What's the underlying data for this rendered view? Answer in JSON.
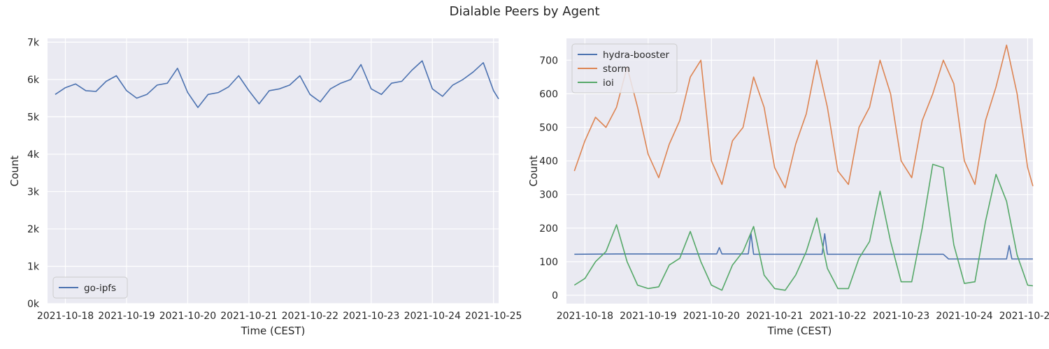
{
  "figure": {
    "title": "Dialable Peers by Agent"
  },
  "colors": {
    "plot_bg": "#eaeaf2",
    "grid": "#ffffff",
    "blue": "#4c72b0",
    "orange": "#dd8452",
    "green": "#55a868"
  },
  "chart_data": [
    {
      "type": "line",
      "title": "",
      "xlabel": "Time (CEST)",
      "ylabel": "Count",
      "x_ticks": [
        "2021-10-18",
        "2021-10-19",
        "2021-10-20",
        "2021-10-21",
        "2021-10-22",
        "2021-10-23",
        "2021-10-24",
        "2021-10-25"
      ],
      "y_ticks": [
        "0k",
        "1k",
        "2k",
        "3k",
        "4k",
        "5k",
        "6k",
        "7k"
      ],
      "xlim": [
        "2021-10-17 17:00",
        "2021-10-25 02:00"
      ],
      "ylim": [
        0,
        7100
      ],
      "grid": true,
      "legend_position": "lower-left",
      "series": [
        {
          "name": "go-ipfs",
          "color": "#4c72b0",
          "points": [
            [
              "2021-10-17 20:00",
              5600
            ],
            [
              "2021-10-18 00:00",
              5780
            ],
            [
              "2021-10-18 04:00",
              5880
            ],
            [
              "2021-10-18 08:00",
              5700
            ],
            [
              "2021-10-18 12:00",
              5680
            ],
            [
              "2021-10-18 16:00",
              5950
            ],
            [
              "2021-10-18 20:00",
              6100
            ],
            [
              "2021-10-19 00:00",
              5700
            ],
            [
              "2021-10-19 04:00",
              5500
            ],
            [
              "2021-10-19 08:00",
              5600
            ],
            [
              "2021-10-19 12:00",
              5850
            ],
            [
              "2021-10-19 16:00",
              5900
            ],
            [
              "2021-10-19 20:00",
              6300
            ],
            [
              "2021-10-20 00:00",
              5650
            ],
            [
              "2021-10-20 04:00",
              5250
            ],
            [
              "2021-10-20 08:00",
              5600
            ],
            [
              "2021-10-20 12:00",
              5650
            ],
            [
              "2021-10-20 16:00",
              5800
            ],
            [
              "2021-10-20 20:00",
              6100
            ],
            [
              "2021-10-21 00:00",
              5700
            ],
            [
              "2021-10-21 04:00",
              5350
            ],
            [
              "2021-10-21 08:00",
              5700
            ],
            [
              "2021-10-21 12:00",
              5750
            ],
            [
              "2021-10-21 16:00",
              5850
            ],
            [
              "2021-10-21 20:00",
              6100
            ],
            [
              "2021-10-22 00:00",
              5600
            ],
            [
              "2021-10-22 04:00",
              5400
            ],
            [
              "2021-10-22 08:00",
              5750
            ],
            [
              "2021-10-22 12:00",
              5900
            ],
            [
              "2021-10-22 16:00",
              6000
            ],
            [
              "2021-10-22 20:00",
              6400
            ],
            [
              "2021-10-23 00:00",
              5750
            ],
            [
              "2021-10-23 04:00",
              5600
            ],
            [
              "2021-10-23 08:00",
              5900
            ],
            [
              "2021-10-23 12:00",
              5950
            ],
            [
              "2021-10-23 16:00",
              6250
            ],
            [
              "2021-10-23 20:00",
              6500
            ],
            [
              "2021-10-24 00:00",
              5750
            ],
            [
              "2021-10-24 04:00",
              5550
            ],
            [
              "2021-10-24 08:00",
              5850
            ],
            [
              "2021-10-24 12:00",
              6000
            ],
            [
              "2021-10-24 16:00",
              6200
            ],
            [
              "2021-10-24 20:00",
              6450
            ],
            [
              "2021-10-25 00:00",
              5700
            ],
            [
              "2021-10-25 02:00",
              5480
            ]
          ]
        }
      ]
    },
    {
      "type": "line",
      "title": "",
      "xlabel": "Time (CEST)",
      "ylabel": "Count",
      "x_ticks": [
        "2021-10-18",
        "2021-10-19",
        "2021-10-20",
        "2021-10-21",
        "2021-10-22",
        "2021-10-23",
        "2021-10-24",
        "2021-10-25"
      ],
      "y_ticks": [
        "0",
        "100",
        "200",
        "300",
        "400",
        "500",
        "600",
        "700"
      ],
      "xlim": [
        "2021-10-17 17:00",
        "2021-10-25 02:00"
      ],
      "ylim": [
        -25,
        765
      ],
      "grid": true,
      "legend_position": "top-left",
      "series": [
        {
          "name": "hydra-booster",
          "color": "#4c72b0",
          "points": [
            [
              "2021-10-17 20:00",
              122
            ],
            [
              "2021-10-18 12:00",
              123
            ],
            [
              "2021-10-19 12:00",
              123
            ],
            [
              "2021-10-20 02:00",
              123
            ],
            [
              "2021-10-20 03:00",
              142
            ],
            [
              "2021-10-20 04:00",
              123
            ],
            [
              "2021-10-20 12:00",
              123
            ],
            [
              "2021-10-20 14:00",
              123
            ],
            [
              "2021-10-20 15:00",
              185
            ],
            [
              "2021-10-20 16:00",
              122
            ],
            [
              "2021-10-21 12:00",
              122
            ],
            [
              "2021-10-21 18:00",
              122
            ],
            [
              "2021-10-21 19:00",
              183
            ],
            [
              "2021-10-21 20:00",
              122
            ],
            [
              "2021-10-22 12:00",
              122
            ],
            [
              "2021-10-23 12:00",
              122
            ],
            [
              "2021-10-23 16:00",
              122
            ],
            [
              "2021-10-23 18:00",
              108
            ],
            [
              "2021-10-24 12:00",
              108
            ],
            [
              "2021-10-24 16:00",
              108
            ],
            [
              "2021-10-24 17:00",
              148
            ],
            [
              "2021-10-24 18:00",
              108
            ],
            [
              "2021-10-25 02:00",
              108
            ]
          ]
        },
        {
          "name": "storm",
          "color": "#dd8452",
          "points": [
            [
              "2021-10-17 20:00",
              370
            ],
            [
              "2021-10-18 00:00",
              460
            ],
            [
              "2021-10-18 04:00",
              530
            ],
            [
              "2021-10-18 08:00",
              500
            ],
            [
              "2021-10-18 12:00",
              560
            ],
            [
              "2021-10-18 16:00",
              680
            ],
            [
              "2021-10-18 20:00",
              560
            ],
            [
              "2021-10-19 00:00",
              420
            ],
            [
              "2021-10-19 04:00",
              350
            ],
            [
              "2021-10-19 08:00",
              450
            ],
            [
              "2021-10-19 12:00",
              520
            ],
            [
              "2021-10-19 16:00",
              650
            ],
            [
              "2021-10-19 20:00",
              700
            ],
            [
              "2021-10-20 00:00",
              400
            ],
            [
              "2021-10-20 04:00",
              330
            ],
            [
              "2021-10-20 08:00",
              460
            ],
            [
              "2021-10-20 12:00",
              500
            ],
            [
              "2021-10-20 16:00",
              650
            ],
            [
              "2021-10-20 20:00",
              560
            ],
            [
              "2021-10-21 00:00",
              380
            ],
            [
              "2021-10-21 04:00",
              320
            ],
            [
              "2021-10-21 08:00",
              450
            ],
            [
              "2021-10-21 12:00",
              540
            ],
            [
              "2021-10-21 16:00",
              700
            ],
            [
              "2021-10-21 20:00",
              560
            ],
            [
              "2021-10-22 00:00",
              370
            ],
            [
              "2021-10-22 04:00",
              330
            ],
            [
              "2021-10-22 08:00",
              500
            ],
            [
              "2021-10-22 12:00",
              560
            ],
            [
              "2021-10-22 16:00",
              700
            ],
            [
              "2021-10-22 20:00",
              600
            ],
            [
              "2021-10-23 00:00",
              400
            ],
            [
              "2021-10-23 04:00",
              350
            ],
            [
              "2021-10-23 08:00",
              520
            ],
            [
              "2021-10-23 12:00",
              600
            ],
            [
              "2021-10-23 16:00",
              700
            ],
            [
              "2021-10-23 20:00",
              630
            ],
            [
              "2021-10-24 00:00",
              400
            ],
            [
              "2021-10-24 04:00",
              330
            ],
            [
              "2021-10-24 08:00",
              520
            ],
            [
              "2021-10-24 12:00",
              620
            ],
            [
              "2021-10-24 16:00",
              745
            ],
            [
              "2021-10-24 20:00",
              600
            ],
            [
              "2021-10-25 00:00",
              380
            ],
            [
              "2021-10-25 02:00",
              325
            ]
          ]
        },
        {
          "name": "ioi",
          "color": "#55a868",
          "points": [
            [
              "2021-10-17 20:00",
              30
            ],
            [
              "2021-10-18 00:00",
              50
            ],
            [
              "2021-10-18 04:00",
              100
            ],
            [
              "2021-10-18 08:00",
              130
            ],
            [
              "2021-10-18 12:00",
              210
            ],
            [
              "2021-10-18 16:00",
              100
            ],
            [
              "2021-10-18 20:00",
              30
            ],
            [
              "2021-10-19 00:00",
              20
            ],
            [
              "2021-10-19 04:00",
              25
            ],
            [
              "2021-10-19 08:00",
              90
            ],
            [
              "2021-10-19 12:00",
              110
            ],
            [
              "2021-10-19 16:00",
              190
            ],
            [
              "2021-10-19 20:00",
              100
            ],
            [
              "2021-10-20 00:00",
              30
            ],
            [
              "2021-10-20 04:00",
              15
            ],
            [
              "2021-10-20 08:00",
              90
            ],
            [
              "2021-10-20 12:00",
              130
            ],
            [
              "2021-10-20 16:00",
              205
            ],
            [
              "2021-10-20 20:00",
              60
            ],
            [
              "2021-10-21 00:00",
              20
            ],
            [
              "2021-10-21 04:00",
              15
            ],
            [
              "2021-10-21 08:00",
              60
            ],
            [
              "2021-10-21 12:00",
              130
            ],
            [
              "2021-10-21 16:00",
              230
            ],
            [
              "2021-10-21 20:00",
              80
            ],
            [
              "2021-10-22 00:00",
              20
            ],
            [
              "2021-10-22 04:00",
              20
            ],
            [
              "2021-10-22 08:00",
              110
            ],
            [
              "2021-10-22 12:00",
              160
            ],
            [
              "2021-10-22 16:00",
              310
            ],
            [
              "2021-10-22 20:00",
              160
            ],
            [
              "2021-10-23 00:00",
              40
            ],
            [
              "2021-10-23 04:00",
              40
            ],
            [
              "2021-10-23 08:00",
              200
            ],
            [
              "2021-10-23 12:00",
              390
            ],
            [
              "2021-10-23 16:00",
              380
            ],
            [
              "2021-10-23 20:00",
              150
            ],
            [
              "2021-10-24 00:00",
              35
            ],
            [
              "2021-10-24 04:00",
              40
            ],
            [
              "2021-10-24 08:00",
              220
            ],
            [
              "2021-10-24 12:00",
              360
            ],
            [
              "2021-10-24 16:00",
              280
            ],
            [
              "2021-10-24 20:00",
              120
            ],
            [
              "2021-10-25 00:00",
              30
            ],
            [
              "2021-10-25 02:00",
              28
            ]
          ]
        }
      ]
    }
  ]
}
